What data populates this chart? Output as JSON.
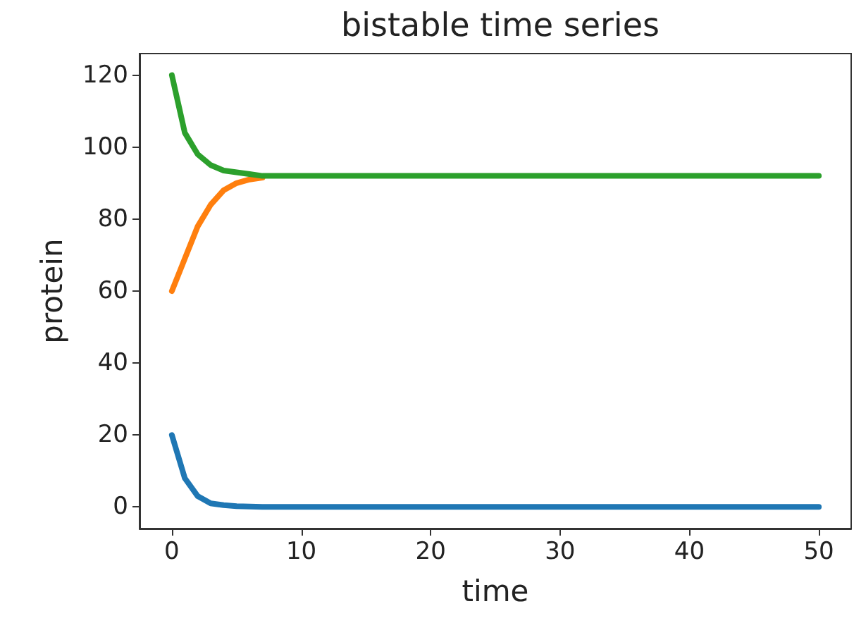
{
  "chart_data": {
    "type": "line",
    "title": "bistable time series",
    "xlabel": "time",
    "ylabel": "protein",
    "x": [
      0,
      1,
      2,
      3,
      4,
      5,
      6,
      7,
      8,
      9,
      10,
      20,
      30,
      40,
      50
    ],
    "series": [
      {
        "color": "#1f77b4",
        "values": [
          20,
          8,
          3,
          1,
          0.5,
          0.2,
          0.1,
          0,
          0,
          0,
          0,
          0,
          0,
          0,
          0
        ]
      },
      {
        "color": "#ff7f0e",
        "values": [
          60,
          69,
          78,
          84,
          88,
          90,
          91,
          91.5,
          null,
          null,
          null,
          null,
          null,
          null,
          null
        ]
      },
      {
        "color": "#2ca02c",
        "values": [
          120,
          104,
          98,
          95,
          93.5,
          93,
          92.5,
          92,
          92,
          92,
          92,
          92,
          92,
          92,
          92
        ]
      }
    ],
    "xlim": [
      -2.5,
      52.5
    ],
    "xticks": [
      0,
      10,
      20,
      30,
      40,
      50
    ],
    "ylim": [
      -6,
      126
    ],
    "yticks": [
      0,
      20,
      40,
      60,
      80,
      100,
      120
    ],
    "grid": false,
    "marker": "none",
    "line_style": "solid"
  }
}
